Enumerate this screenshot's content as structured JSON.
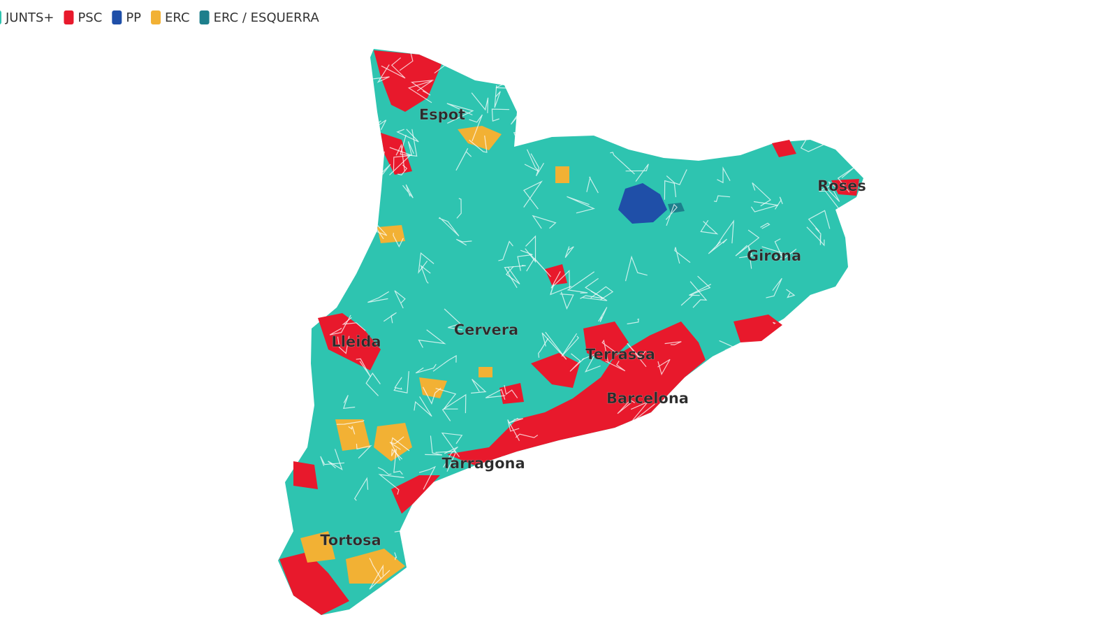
{
  "legend": [
    {
      "label": "JUNTS+",
      "color": "#2ec4b0"
    },
    {
      "label": "PSC",
      "color": "#e8192c"
    },
    {
      "label": "PP",
      "color": "#1f4fa8"
    },
    {
      "label": "ERC",
      "color": "#f2b134"
    },
    {
      "label": "ERC / ESQUERRA",
      "color": "#1d7f8c"
    }
  ],
  "places": [
    "Espot",
    "Roses",
    "Girona",
    "Cervera",
    "Lleida",
    "Terrassa",
    "Barcelona",
    "Tarragona",
    "Tortosa"
  ]
}
